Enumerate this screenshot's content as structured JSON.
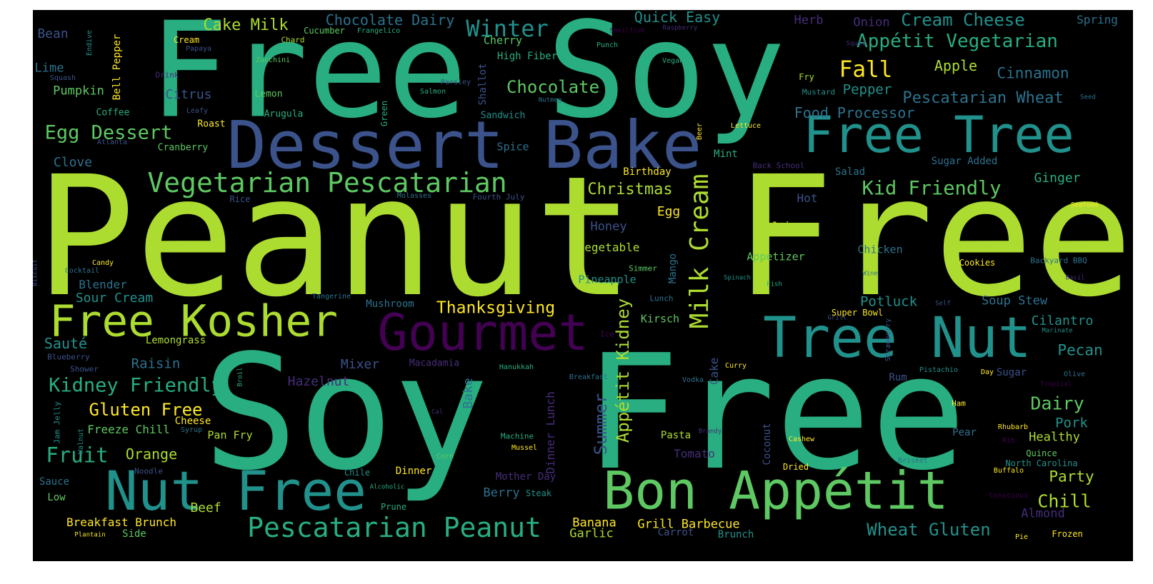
{
  "palette": {
    "background": "#000000",
    "colors": [
      "#440154",
      "#472d7b",
      "#3b528b",
      "#2c728e",
      "#21918c",
      "#28ae80",
      "#5ec962",
      "#addc30",
      "#fde725"
    ]
  },
  "words": [
    "Peanut Free",
    "Free Soy",
    "Soy Free",
    "Dessert Bake",
    "Free Tree",
    "Tree Nut",
    "Gourmet",
    "Free Kosher",
    "Nut Free",
    "Bon Appétit",
    "Pescatarian Peanut",
    "Vegetarian Pescatarian",
    "Milk Cream",
    "Appétit Vegetarian",
    "Kid Friendly",
    "Winter",
    "Fall",
    "Egg Dessert",
    "Kidney Friendly",
    "Christmas",
    "Chocolate",
    "Cream Cheese",
    "Pescatarian Wheat",
    "Food Processor",
    "Thanksgiving",
    "Wheat Gluten",
    "Gluten Free",
    "Appétit Kidney",
    "Summer",
    "Cake Milk",
    "Chocolate Dairy",
    "Quick Easy",
    "Cinnamon",
    "Fruit",
    "Dairy",
    "Chill",
    "Apple",
    "Pecan",
    "Party",
    "Bean",
    "Lime",
    "Pumpkin",
    "Citrus",
    "Clove",
    "Blender",
    "Sour Cream",
    "Sauté",
    "Raisin",
    "Mixer",
    "Hazelnut",
    "Orange",
    "Beef",
    "Breakfast Brunch",
    "Banana",
    "Garlic",
    "Grill Barbecue",
    "Berry",
    "Potluck",
    "Soup Stew",
    "Cilantro",
    "Pork",
    "Healthy",
    "Almond",
    "Ginger",
    "Honey",
    "Vegetable",
    "Egg",
    "Hot",
    "Juice",
    "Appetizer",
    "Chicken",
    "Pepper",
    "Herb",
    "Onion",
    "Spring",
    "Mint",
    "Spice",
    "Birthday",
    "Sugar Added",
    "Salad",
    "Dinner Lunch",
    "Bake",
    "Cake",
    "Mango",
    "Kirsch",
    "Tomato",
    "Coconut",
    "Pineapple",
    "Mushroom",
    "Macadamia",
    "Pasta",
    "Freeze Chill",
    "Pan Fry",
    "Cheese",
    "Dinner",
    "Mother Day",
    "Lemongrass",
    "Rum",
    "High Fiber",
    "Cherry",
    "Sandwich",
    "Shallot",
    "Bell Pepper",
    "Roast",
    "Cranberry",
    "Lemon",
    "Arugula",
    "Coffee",
    "Cream",
    "Chard",
    "Cucumber",
    "Frangelico",
    "Zucchini",
    "Punch",
    "Vegan",
    "Raspberry",
    "Shellfish",
    "Squid",
    "Mustard",
    "Fry",
    "Seed",
    "Seafood",
    "Backyard BBQ",
    "Cookies",
    "Wine",
    "Fish",
    "Spinach",
    "Lunch",
    "Simmer",
    "Basil",
    "Self",
    "Super Bowl",
    "Grill",
    "Strawberry",
    "Marinate",
    "Tropical",
    "Olive",
    "Sugar",
    "Day",
    "Pistachio",
    "Curry",
    "Vodka",
    "Breakfast",
    "Ice",
    "Hanukkah",
    "Ham",
    "Rhubarb",
    "Pear",
    "Rib",
    "Quince",
    "North Carolina",
    "Buffalo",
    "Brisket",
    "Cashew",
    "Dried",
    "Conscious",
    "Pie",
    "Frozen",
    "Brunch",
    "Carrot",
    "Steak",
    "Prune",
    "Alcoholic",
    "Chile",
    "Corn",
    "Mussel",
    "Machine",
    "Brandy",
    "Cal",
    "Syrup",
    "Walnut",
    "Jam Jelly",
    "Noodle",
    "Sauce",
    "Low",
    "Side",
    "Plantain",
    "Shower",
    "Blueberry",
    "Broil",
    "Biscuit",
    "Candy",
    "Cocktail",
    "Tangerine",
    "Rice",
    "Molasses",
    "Fourth July",
    "Atlanta",
    "Drink",
    "Squash",
    "Leafy",
    "Nutmeg",
    "Salmon",
    "Parsley",
    "Green",
    "Endive",
    "Papaya",
    "Beer",
    "Lettuce",
    "Back School"
  ]
}
